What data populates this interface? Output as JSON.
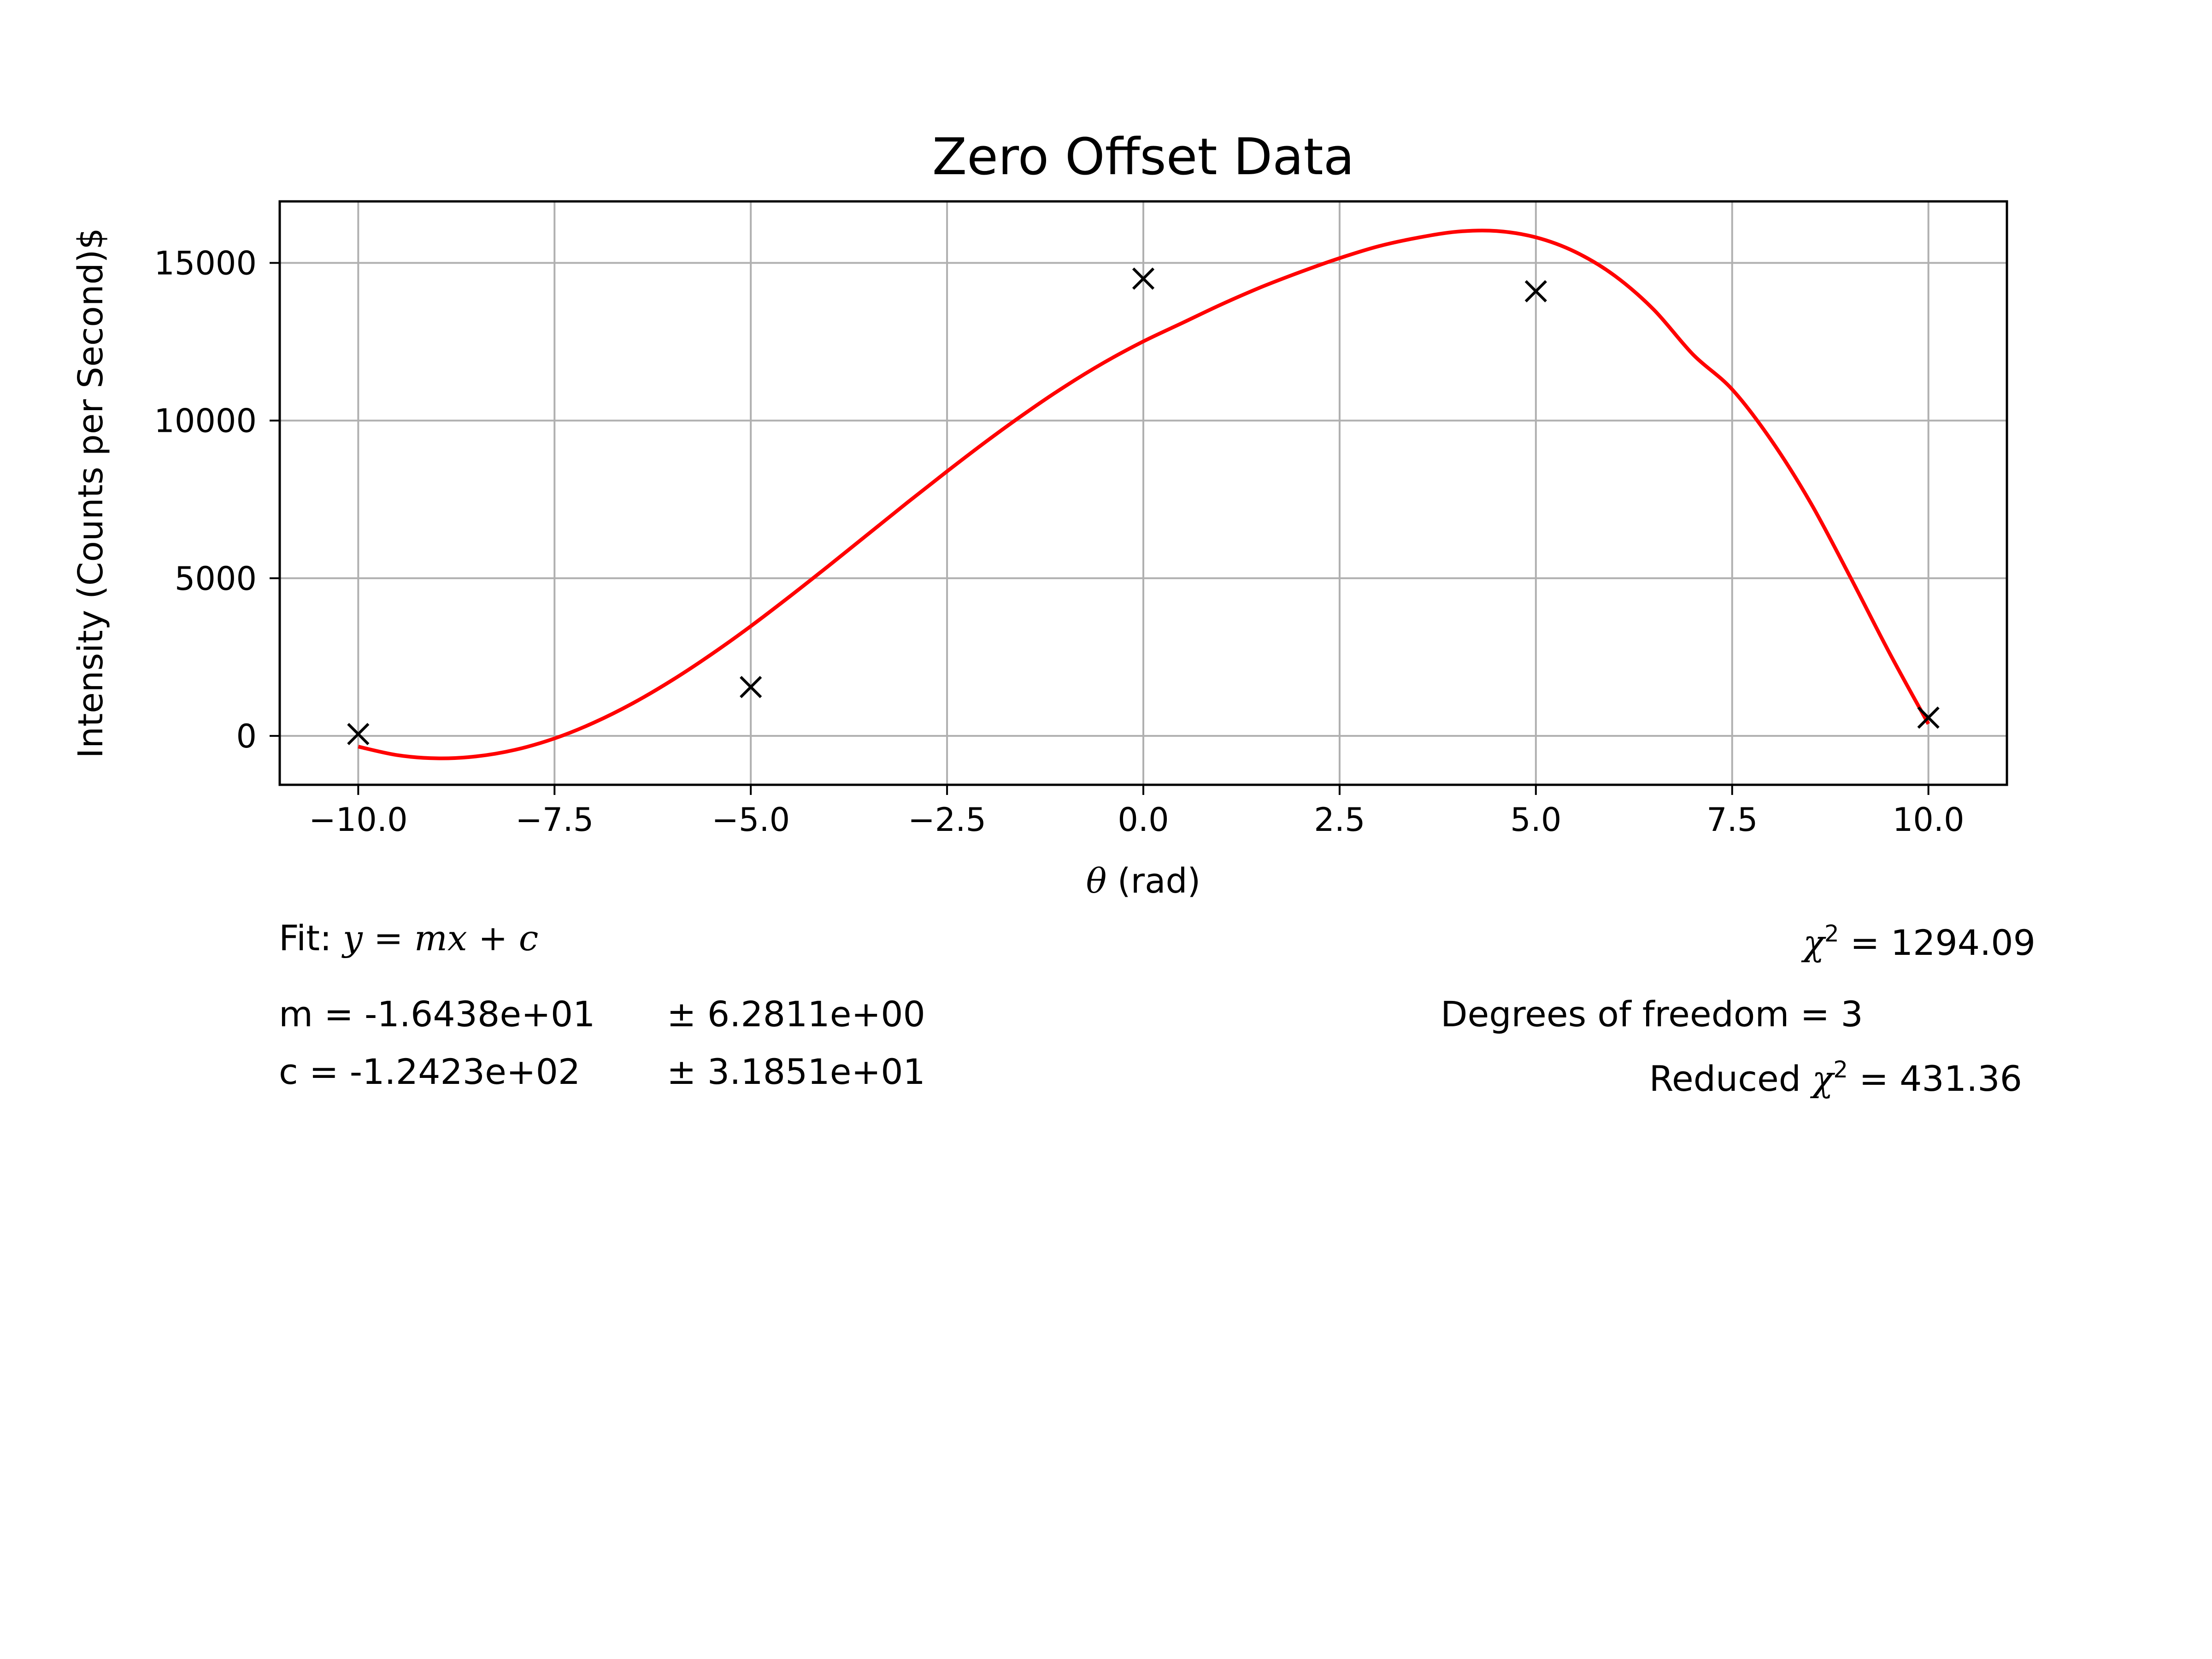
{
  "chart_data": {
    "type": "scatter",
    "title": "Zero Offset Data",
    "xlabel_symbol": "θ",
    "xlabel_unit": "(rad)",
    "ylabel": "Intensity (Counts per Second)$",
    "xlim": [
      -11,
      11
    ],
    "ylim": [
      -1550,
      16950
    ],
    "xticks": [
      -10.0,
      -7.5,
      -5.0,
      -2.5,
      0.0,
      2.5,
      5.0,
      7.5,
      10.0
    ],
    "xtick_labels": [
      "−10.0",
      "−7.5",
      "−5.0",
      "−2.5",
      "0.0",
      "2.5",
      "5.0",
      "7.5",
      "10.0"
    ],
    "yticks": [
      0,
      5000,
      10000,
      15000
    ],
    "ytick_labels": [
      "0",
      "5000",
      "10000",
      "15000"
    ],
    "grid": true,
    "series": [
      {
        "kind": "scatter",
        "marker": "x",
        "color": "#000000",
        "x": [
          -10,
          -5,
          0,
          5,
          10
        ],
        "y": [
          60,
          1550,
          14500,
          14100,
          580
        ]
      },
      {
        "kind": "line",
        "color": "#ff0000",
        "x": [
          -10,
          -9.5,
          -9,
          -8.5,
          -8,
          -7.5,
          -7,
          -6.5,
          -6,
          -5.5,
          -5,
          -4.5,
          -4,
          -3.5,
          -3,
          -2.5,
          -2,
          -1.5,
          -1,
          -0.5,
          0,
          0.5,
          1,
          1.5,
          2,
          2.5,
          3,
          3.5,
          4,
          4.5,
          5,
          5.5,
          6,
          6.5,
          7,
          7.5,
          8,
          8.5,
          9,
          9.5,
          10
        ],
        "y": [
          -340,
          -610,
          -710,
          -650,
          -440,
          -80,
          420,
          1040,
          1770,
          2590,
          3480,
          4430,
          5410,
          6410,
          7410,
          8390,
          9340,
          10240,
          11080,
          11840,
          12510,
          13100,
          13690,
          14230,
          14710,
          15150,
          15530,
          15800,
          15990,
          16010,
          15810,
          15350,
          14600,
          13520,
          12100,
          10990,
          9370,
          7390,
          5060,
          2650,
          380
        ]
      }
    ]
  },
  "fit": {
    "label": "Fit:",
    "equation": "y = mx + c",
    "m_line": "m = -1.6438e+01",
    "m_err": "± 6.2811e+00",
    "c_line": "c = -1.2423e+02",
    "c_err": "± 3.1851e+01",
    "chi2_symbol": "χ",
    "chi2_value": "= 1294.09",
    "dof": "Degrees of freedom = 3",
    "reduced_label": "Reduced",
    "reduced_value": "= 431.36"
  }
}
